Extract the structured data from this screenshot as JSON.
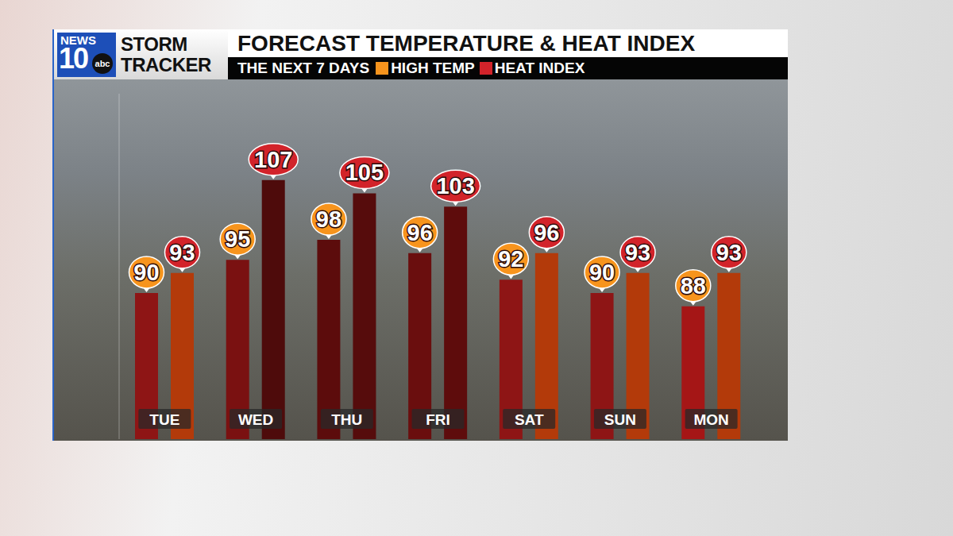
{
  "chart_data": {
    "type": "bar",
    "title": "FORECAST TEMPERATURE & HEAT INDEX",
    "subtitle": "THE NEXT 7 DAYS",
    "categories": [
      "TUE",
      "WED",
      "THU",
      "FRI",
      "SAT",
      "SUN",
      "MON"
    ],
    "series": [
      {
        "name": "HIGH TEMP",
        "color": "#f7941d",
        "colors": [
          "#8e1515",
          "#7a1111",
          "#5c0c0c",
          "#6a0e0e",
          "#8e1515",
          "#8e1515",
          "#a51616"
        ],
        "values": [
          90,
          95,
          98,
          96,
          92,
          90,
          88
        ]
      },
      {
        "name": "HEAT INDEX",
        "color": "#d2232a",
        "colors": [
          "#b33a0a",
          "#4e0b0b",
          "#560c0c",
          "#5e0c0c",
          "#b33a0a",
          "#b33a0a",
          "#b33a0a"
        ],
        "values": [
          93,
          107,
          105,
          103,
          96,
          93,
          93
        ]
      }
    ],
    "ylim": [
      68,
      120
    ],
    "yticks": [],
    "tick_labels": "x",
    "data_labels": true,
    "legend": "top",
    "grid": false
  },
  "logo": {
    "station": "NEWS",
    "channel": "10",
    "network": "abc",
    "brand": [
      "STORM",
      "TRACKER"
    ]
  }
}
